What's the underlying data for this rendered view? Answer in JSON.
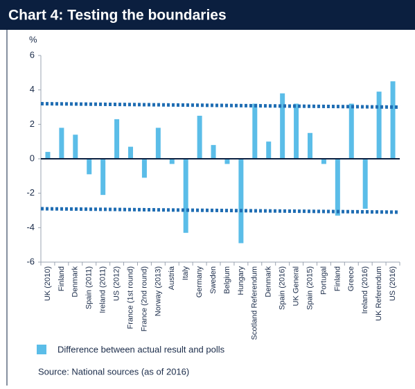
{
  "chart_data": {
    "type": "bar",
    "title": "Chart 4: Testing the boundaries",
    "y_label": "%",
    "categories": [
      "UK (2010)",
      "Finland",
      "Denmark",
      "Spain (2011)",
      "Ireland (2011)",
      "US (2012)",
      "France (1st round)",
      "France (2nd round)",
      "Norway (2013)",
      "Austria",
      "Italy",
      "Germany",
      "Sweden",
      "Belgium",
      "Hungary",
      "Scotland Referendum",
      "Denmark",
      "Spain (2016)",
      "UK General",
      "Spain (2015)",
      "Portugal",
      "Finland",
      "Greece",
      "Ireland (2016)",
      "UK Referendum",
      "US (2016)"
    ],
    "series": [
      {
        "name": "Difference between actual result and polls",
        "color": "#5bbde8",
        "values": [
          0.4,
          1.8,
          1.4,
          -0.9,
          -2.1,
          2.3,
          0.7,
          -1.1,
          1.8,
          -0.3,
          -4.3,
          2.5,
          0.8,
          -0.3,
          -4.9,
          3.2,
          1.0,
          3.8,
          3.2,
          1.5,
          -0.3,
          -3.3,
          3.2,
          -2.9,
          3.9,
          4.5
        ]
      }
    ],
    "reference_lines": [
      {
        "color": "#1f6db3",
        "values": [
          3.2,
          3.0
        ]
      },
      {
        "color": "#1f6db3",
        "values": [
          -2.9,
          -3.1
        ]
      }
    ],
    "ylim": [
      -6,
      6
    ],
    "yticks": [
      -6,
      -4,
      -2,
      0,
      2,
      4,
      6
    ],
    "source": "Source: National sources (as of 2016)"
  }
}
